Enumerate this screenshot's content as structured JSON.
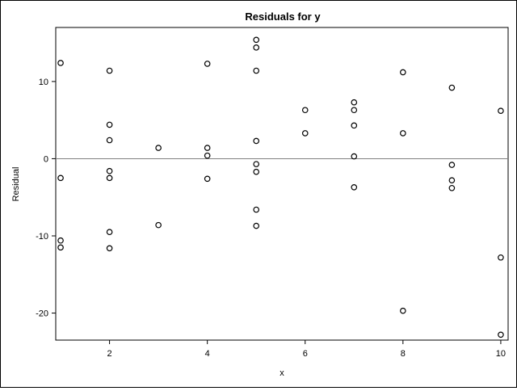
{
  "chart_data": {
    "type": "scatter",
    "title": "Residuals for y",
    "xlabel": "x",
    "ylabel": "Residual",
    "xlim": [
      0.9,
      10.15
    ],
    "ylim": [
      -23.5,
      17.0
    ],
    "xticks": [
      2,
      4,
      6,
      8,
      10
    ],
    "yticks": [
      -20,
      -10,
      0,
      10
    ],
    "reference_line_y": 0,
    "grid": false,
    "marker": "open-circle",
    "colors": {
      "marker": "#000000",
      "reference_line": "#808080",
      "frame": "#000000"
    },
    "points": [
      {
        "x": 1,
        "y": 12.4
      },
      {
        "x": 1,
        "y": -2.5
      },
      {
        "x": 1,
        "y": -10.6
      },
      {
        "x": 1,
        "y": -11.5
      },
      {
        "x": 2,
        "y": 11.4
      },
      {
        "x": 2,
        "y": 4.4
      },
      {
        "x": 2,
        "y": 2.4
      },
      {
        "x": 2,
        "y": -1.6
      },
      {
        "x": 2,
        "y": -2.5
      },
      {
        "x": 2,
        "y": -9.5
      },
      {
        "x": 2,
        "y": -11.6
      },
      {
        "x": 3,
        "y": 1.4
      },
      {
        "x": 3,
        "y": -8.6
      },
      {
        "x": 4,
        "y": 12.3
      },
      {
        "x": 4,
        "y": 1.4
      },
      {
        "x": 4,
        "y": 0.4
      },
      {
        "x": 4,
        "y": -2.6
      },
      {
        "x": 5,
        "y": 15.4
      },
      {
        "x": 5,
        "y": 14.4
      },
      {
        "x": 5,
        "y": 11.4
      },
      {
        "x": 5,
        "y": 2.3
      },
      {
        "x": 5,
        "y": -0.7
      },
      {
        "x": 5,
        "y": -1.7
      },
      {
        "x": 5,
        "y": -6.6
      },
      {
        "x": 5,
        "y": -8.7
      },
      {
        "x": 6,
        "y": 6.3
      },
      {
        "x": 6,
        "y": 3.3
      },
      {
        "x": 7,
        "y": 7.3
      },
      {
        "x": 7,
        "y": 6.3
      },
      {
        "x": 7,
        "y": 4.3
      },
      {
        "x": 7,
        "y": 0.3
      },
      {
        "x": 7,
        "y": -3.7
      },
      {
        "x": 8,
        "y": 11.2
      },
      {
        "x": 8,
        "y": 3.3
      },
      {
        "x": 8,
        "y": -19.7
      },
      {
        "x": 9,
        "y": 9.2
      },
      {
        "x": 9,
        "y": -0.8
      },
      {
        "x": 9,
        "y": -2.8
      },
      {
        "x": 9,
        "y": -3.8
      },
      {
        "x": 10,
        "y": 6.2
      },
      {
        "x": 10,
        "y": -12.8
      },
      {
        "x": 10,
        "y": -22.8
      }
    ]
  }
}
